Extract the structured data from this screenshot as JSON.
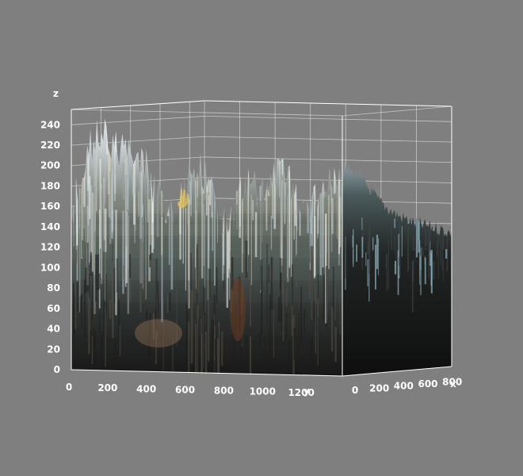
{
  "chart_data": {
    "type": "surface",
    "title": "",
    "xlabel": "x",
    "ylabel": "y",
    "zlabel": "z",
    "x_ticks": [
      "0",
      "200",
      "400",
      "600",
      "800"
    ],
    "y_ticks": [
      "0",
      "200",
      "400",
      "600",
      "800",
      "1000",
      "1200"
    ],
    "z_ticks": [
      "0",
      "20",
      "40",
      "60",
      "80",
      "100",
      "120",
      "140",
      "160",
      "180",
      "200",
      "220",
      "240"
    ],
    "xlim": [
      0,
      900
    ],
    "ylim": [
      0,
      1400
    ],
    "zlim": [
      0,
      250
    ],
    "grid": true,
    "background": "#7f7f7f",
    "surface_description_colors": {
      "high": "#e8ecef",
      "mid": "#6f7a78",
      "low": "#1c1c1a"
    },
    "front_profile_y_values": [
      0,
      100,
      200,
      300,
      400,
      500,
      600,
      700,
      800,
      900,
      1000,
      1100,
      1200,
      1300,
      1400
    ],
    "front_profile_z_values": [
      160,
      242,
      236,
      238,
      205,
      170,
      195,
      215,
      160,
      205,
      198,
      225,
      172,
      200,
      212
    ],
    "side_profile_x_values": [
      0,
      150,
      300,
      450,
      600,
      750,
      900
    ],
    "side_profile_z_values": [
      212,
      200,
      175,
      160,
      150,
      145,
      138
    ]
  }
}
